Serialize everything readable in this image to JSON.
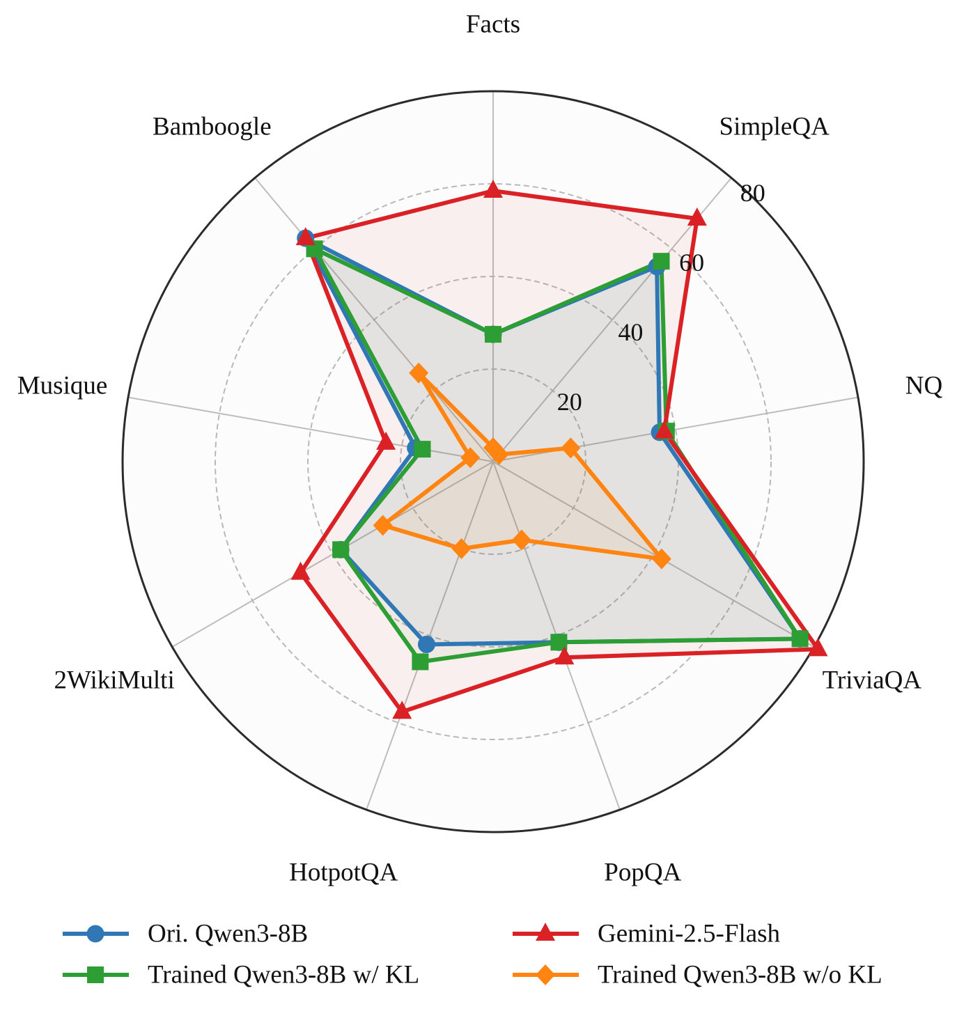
{
  "chart_data": {
    "type": "radar",
    "axes": [
      "Facts",
      "SimpleQA",
      "NQ",
      "TriviaQA",
      "PopQA",
      "HotpotQA",
      "2WikiMulti",
      "Musique",
      "Bamboogle"
    ],
    "rlim": [
      0,
      80
    ],
    "rticks": [
      20,
      40,
      60,
      80
    ],
    "rtick_labels": [
      "20",
      "40",
      "60",
      "80"
    ],
    "grid": true,
    "legend_position": "bottom",
    "series": [
      {
        "name": "Ori. Qwen3-8B",
        "color": "#2f78b5",
        "marker": "circle",
        "values": [
          27.5,
          55,
          36.5,
          76.5,
          41.5,
          42,
          38,
          17,
          63
        ]
      },
      {
        "name": "Trained Qwen3-8B w/ KL",
        "color": "#2d9e34",
        "marker": "square",
        "values": [
          27.5,
          56.5,
          38,
          76.5,
          41.5,
          46,
          38,
          15.5,
          60
        ]
      },
      {
        "name": "Gemini-2.5-Flash",
        "color": "#da2226",
        "marker": "triangle",
        "values": [
          58.5,
          68.5,
          37.5,
          81,
          45,
          57.5,
          48,
          23.5,
          63
        ]
      },
      {
        "name": "Trained Qwen3-8B w/o KL",
        "color": "#ff8411",
        "marker": "diamond",
        "values": [
          3,
          2,
          17,
          42,
          18,
          20,
          27.5,
          5,
          25
        ]
      }
    ]
  }
}
